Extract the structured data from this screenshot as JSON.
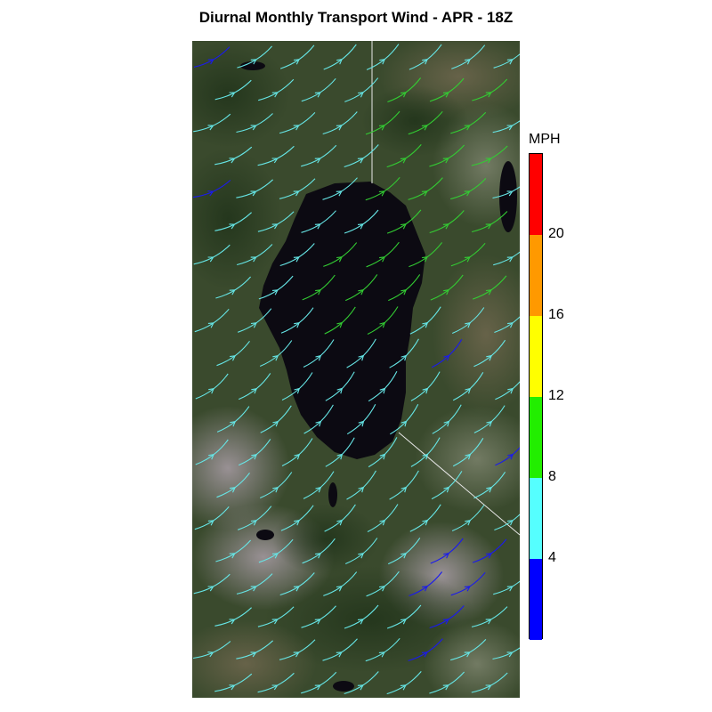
{
  "title": "Diurnal Monthly Transport Wind - APR - 18Z",
  "legend": {
    "unit": "MPH",
    "tick_labels": [
      "4",
      "8",
      "12",
      "16",
      "20"
    ],
    "bins": [
      {
        "color": "#0000ff"
      },
      {
        "color": "#55ffff"
      },
      {
        "color": "#22ee00"
      },
      {
        "color": "#ffff00"
      },
      {
        "color": "#ff9900"
      },
      {
        "color": "#ff0000"
      }
    ]
  },
  "map": {
    "basemap": "satellite-imagery",
    "lake_color": "#0c0a12",
    "overlay": "wind-streamlines"
  }
}
